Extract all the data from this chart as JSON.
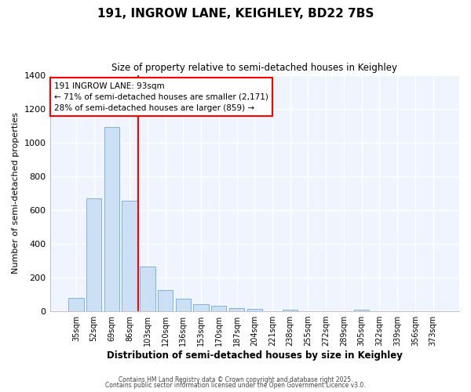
{
  "title": "191, INGROW LANE, KEIGHLEY, BD22 7BS",
  "subtitle": "Size of property relative to semi-detached houses in Keighley",
  "xlabel": "Distribution of semi-detached houses by size in Keighley",
  "ylabel": "Number of semi-detached properties",
  "categories": [
    "35sqm",
    "52sqm",
    "69sqm",
    "86sqm",
    "103sqm",
    "120sqm",
    "136sqm",
    "153sqm",
    "170sqm",
    "187sqm",
    "204sqm",
    "221sqm",
    "238sqm",
    "255sqm",
    "272sqm",
    "289sqm",
    "305sqm",
    "322sqm",
    "339sqm",
    "356sqm",
    "373sqm"
  ],
  "values": [
    80,
    670,
    1090,
    655,
    265,
    128,
    75,
    40,
    32,
    20,
    15,
    0,
    10,
    0,
    0,
    0,
    10,
    0,
    0,
    0,
    0
  ],
  "bar_color": "#cce0f5",
  "bar_edge_color": "#7fb3e0",
  "red_line_x": 3.5,
  "annotation_line1": "191 INGROW LANE: 93sqm",
  "annotation_line2": "← 71% of semi-detached houses are smaller (2,171)",
  "annotation_line3": "28% of semi-detached houses are larger (859) →",
  "footer1": "Contains HM Land Registry data © Crown copyright and database right 2025.",
  "footer2": "Contains public sector information licensed under the Open Government Licence v3.0.",
  "plot_bg_color": "#f0f4ff",
  "fig_bg_color": "#ffffff",
  "ylim": [
    0,
    1400
  ],
  "yticks": [
    0,
    200,
    400,
    600,
    800,
    1000,
    1200,
    1400
  ]
}
